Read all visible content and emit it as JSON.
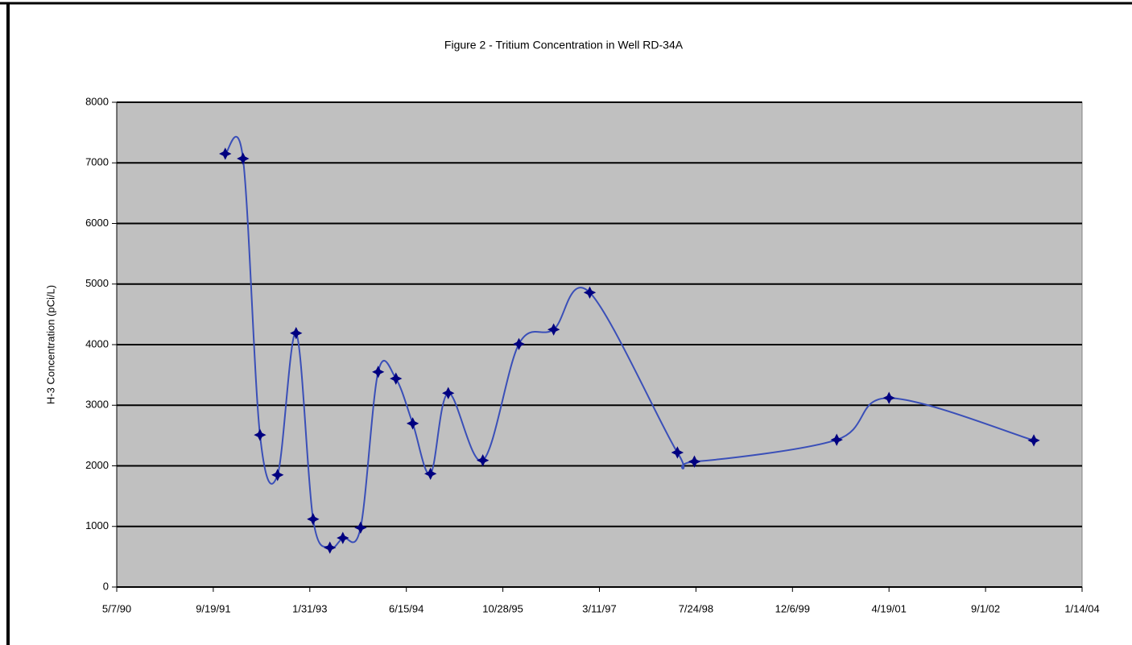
{
  "chart_data": {
    "type": "line",
    "title": "Figure 2 - Tritium Concentration in Well RD-34A",
    "y_label": "H-3 Concentration (pCi/L)",
    "x": [
      "11/20/91",
      "2/20/92",
      "5/18/92",
      "8/17/92",
      "11/21/92",
      "2/17/93",
      "5/15/93",
      "7/21/93",
      "10/21/93",
      "1/20/94",
      "4/22/94",
      "7/18/94",
      "10/18/94",
      "1/18/95",
      "7/16/95",
      "1/19/96",
      "7/17/96",
      "1/20/97",
      "4/19/98",
      "7/16/98",
      "7/22/00",
      "4/19/01",
      "5/9/03"
    ],
    "series": [
      {
        "name": "H-3",
        "color": "#3a4fb8",
        "marker_color": "#000080",
        "values": [
          7150,
          7070,
          2510,
          1850,
          4190,
          1120,
          650,
          810,
          980,
          3550,
          3440,
          2700,
          1870,
          3200,
          2090,
          4010,
          4250,
          4860,
          2220,
          2070,
          2430,
          3120,
          2420
        ]
      }
    ],
    "xlim": [
      "5/7/90",
      "1/14/04"
    ],
    "xticks": [
      "5/7/90",
      "9/19/91",
      "1/31/93",
      "6/15/94",
      "10/28/95",
      "3/11/97",
      "7/24/98",
      "12/6/99",
      "4/19/01",
      "9/1/02",
      "1/14/04"
    ],
    "ylim": [
      0,
      8000
    ],
    "yticks": [
      0,
      1000,
      2000,
      3000,
      4000,
      5000,
      6000,
      7000,
      8000
    ],
    "grid": true,
    "smooth": true,
    "plot_background": "#c0c0c0"
  }
}
